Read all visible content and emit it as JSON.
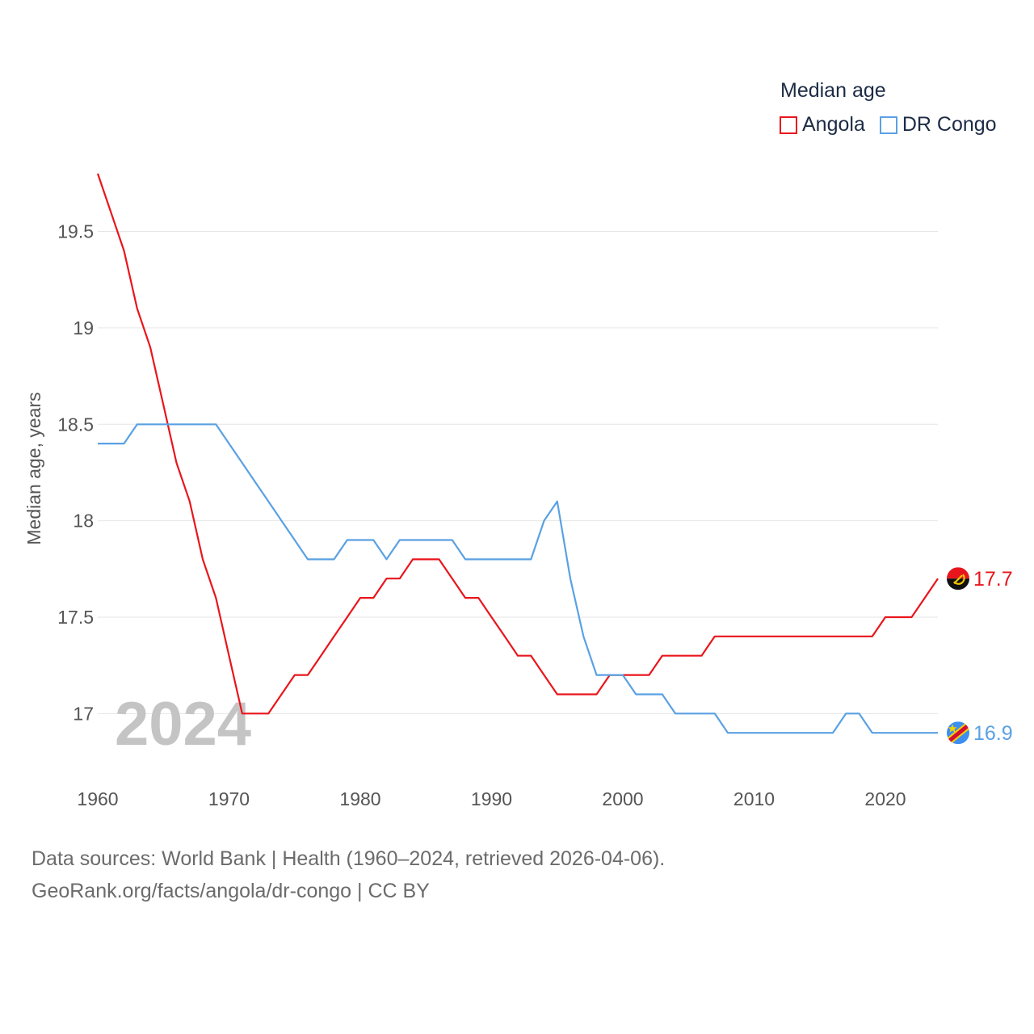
{
  "legend": {
    "title": "Median age",
    "items": [
      {
        "label": "Angola",
        "color": "#e8161c"
      },
      {
        "label": "DR Congo",
        "color": "#5aa1e3"
      }
    ]
  },
  "source": {
    "line1": "Data sources: World Bank | Health (1960–2024, retrieved 2026-04-06).",
    "line2": "GeoRank.org/facts/angola/dr-congo | CC BY"
  },
  "chart_data": {
    "type": "line",
    "title": "Median age",
    "xlabel": "",
    "ylabel": "Median age, years",
    "year_watermark": "2024",
    "xlim": [
      1960,
      2024
    ],
    "ylim": [
      16.75,
      19.85
    ],
    "xticks": [
      {
        "value": 1960,
        "label": "1960"
      },
      {
        "value": 1970,
        "label": "1970"
      },
      {
        "value": 1980,
        "label": "1980"
      },
      {
        "value": 1990,
        "label": "1990"
      },
      {
        "value": 2000,
        "label": "2000"
      },
      {
        "value": 2010,
        "label": "2010"
      },
      {
        "value": 2020,
        "label": "2020"
      }
    ],
    "yticks": [
      {
        "value": 17,
        "label": "17"
      },
      {
        "value": 17.5,
        "label": "17.5"
      },
      {
        "value": 18,
        "label": "18"
      },
      {
        "value": 18.5,
        "label": "18.5"
      },
      {
        "value": 19,
        "label": "19"
      },
      {
        "value": 19.5,
        "label": "19.5"
      }
    ],
    "grid": true,
    "legend_position": "top-right",
    "x": [
      1960,
      1961,
      1962,
      1963,
      1964,
      1965,
      1966,
      1967,
      1968,
      1969,
      1970,
      1971,
      1972,
      1973,
      1974,
      1975,
      1976,
      1977,
      1978,
      1979,
      1980,
      1981,
      1982,
      1983,
      1984,
      1985,
      1986,
      1987,
      1988,
      1989,
      1990,
      1991,
      1992,
      1993,
      1994,
      1995,
      1996,
      1997,
      1998,
      1999,
      2000,
      2001,
      2002,
      2003,
      2004,
      2005,
      2006,
      2007,
      2008,
      2009,
      2010,
      2011,
      2012,
      2013,
      2014,
      2015,
      2016,
      2017,
      2018,
      2019,
      2020,
      2021,
      2022,
      2023,
      2024
    ],
    "series": [
      {
        "name": "Angola",
        "color": "#e8161c",
        "end_label": "17.7",
        "flag_icon": "angola-flag-icon",
        "values": [
          19.8,
          19.6,
          19.4,
          19.1,
          18.9,
          18.6,
          18.3,
          18.1,
          17.8,
          17.6,
          17.3,
          17.0,
          17.0,
          17.0,
          17.1,
          17.2,
          17.2,
          17.3,
          17.4,
          17.5,
          17.6,
          17.6,
          17.7,
          17.7,
          17.8,
          17.8,
          17.8,
          17.7,
          17.6,
          17.6,
          17.5,
          17.4,
          17.3,
          17.3,
          17.2,
          17.1,
          17.1,
          17.1,
          17.1,
          17.2,
          17.2,
          17.2,
          17.2,
          17.3,
          17.3,
          17.3,
          17.3,
          17.4,
          17.4,
          17.4,
          17.4,
          17.4,
          17.4,
          17.4,
          17.4,
          17.4,
          17.4,
          17.4,
          17.4,
          17.4,
          17.5,
          17.5,
          17.5,
          17.6,
          17.7
        ]
      },
      {
        "name": "DR Congo",
        "color": "#5aa1e3",
        "end_label": "16.9",
        "flag_icon": "dr-congo-flag-icon",
        "values": [
          18.4,
          18.4,
          18.4,
          18.5,
          18.5,
          18.5,
          18.5,
          18.5,
          18.5,
          18.5,
          18.4,
          18.3,
          18.2,
          18.1,
          18.0,
          17.9,
          17.8,
          17.8,
          17.8,
          17.9,
          17.9,
          17.9,
          17.8,
          17.9,
          17.9,
          17.9,
          17.9,
          17.9,
          17.8,
          17.8,
          17.8,
          17.8,
          17.8,
          17.8,
          18.0,
          18.1,
          17.7,
          17.4,
          17.2,
          17.2,
          17.2,
          17.1,
          17.1,
          17.1,
          17.0,
          17.0,
          17.0,
          17.0,
          16.9,
          16.9,
          16.9,
          16.9,
          16.9,
          16.9,
          16.9,
          16.9,
          16.9,
          17.0,
          17.0,
          16.9,
          16.9,
          16.9,
          16.9,
          16.9,
          16.9
        ]
      }
    ]
  }
}
